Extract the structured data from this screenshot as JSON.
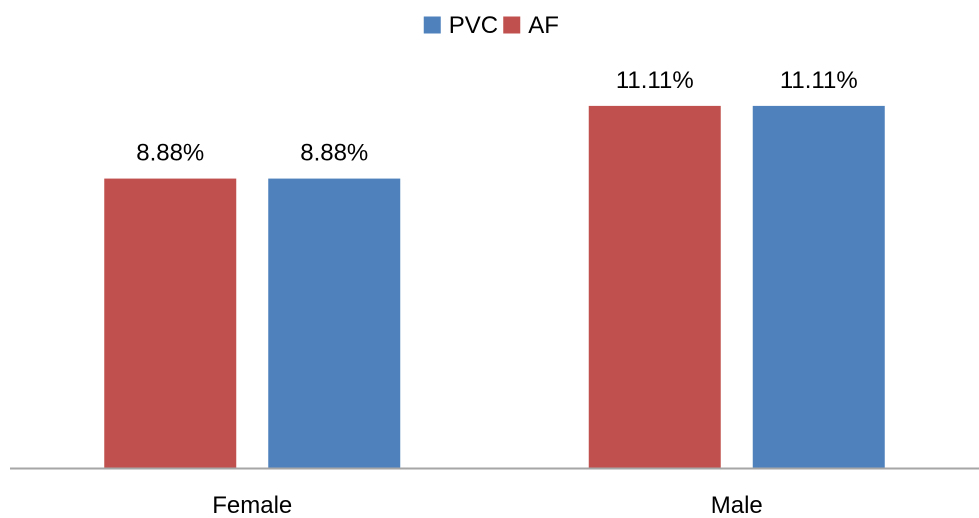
{
  "chart_data": {
    "type": "bar",
    "title": "",
    "xlabel": "",
    "ylabel": "",
    "categories": [
      "Female",
      "Male"
    ],
    "ylim": [
      0,
      13.5
    ],
    "grid": false,
    "legend": "top-center",
    "series": [
      {
        "name": "AF",
        "color": "#C0504D",
        "values": [
          8.88,
          11.11
        ],
        "labels": [
          "8.88%",
          "11.11%"
        ]
      },
      {
        "name": "PVC",
        "color": "#4F81BD",
        "values": [
          8.88,
          11.11
        ],
        "labels": [
          "8.88%",
          "11.11%"
        ]
      }
    ],
    "legend_order": [
      "PVC",
      "AF"
    ],
    "axis_color": "#A6A6A6"
  }
}
